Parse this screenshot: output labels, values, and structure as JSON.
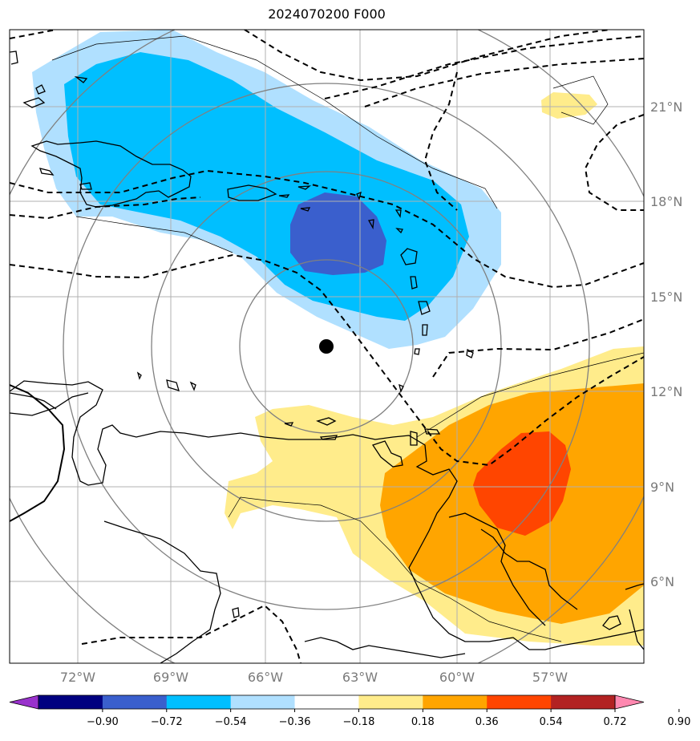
{
  "title": "2024070200 F000",
  "map": {
    "lon_labels": [
      "72°W",
      "69°W",
      "66°W",
      "63°W",
      "60°W",
      "57°W"
    ],
    "lat_labels": [
      "21°N",
      "18°N",
      "15°N",
      "12°N",
      "9°N",
      "6°N"
    ],
    "center_marker": {
      "lon": -64.5,
      "lat": 13.4
    }
  },
  "fill_colors": {
    "c_neg_090_plus": "#000080",
    "c_neg_072": "#3a5fcd",
    "c_neg_054": "#00bfff",
    "c_neg_036": "#b0e0ff",
    "c_pos_018": "#ffec8b",
    "c_pos_036": "#ffa500",
    "c_pos_054": "#ff4500",
    "c_pos_072": "#b22222",
    "c_pos_090": "#ff88b0",
    "c_under": "#9932cc"
  },
  "colorbar": {
    "ticks": [
      "−0.90",
      "−0.72",
      "−0.54",
      "−0.36",
      "−0.18",
      "0.18",
      "0.36",
      "0.54",
      "0.72",
      "0.90"
    ],
    "colors": [
      "#9932cc",
      "#000080",
      "#3a5fcd",
      "#00bfff",
      "#b0e0ff",
      "#ffffff",
      "#ffec8b",
      "#ffa500",
      "#ff4500",
      "#b22222",
      "#ff88b0"
    ]
  }
}
